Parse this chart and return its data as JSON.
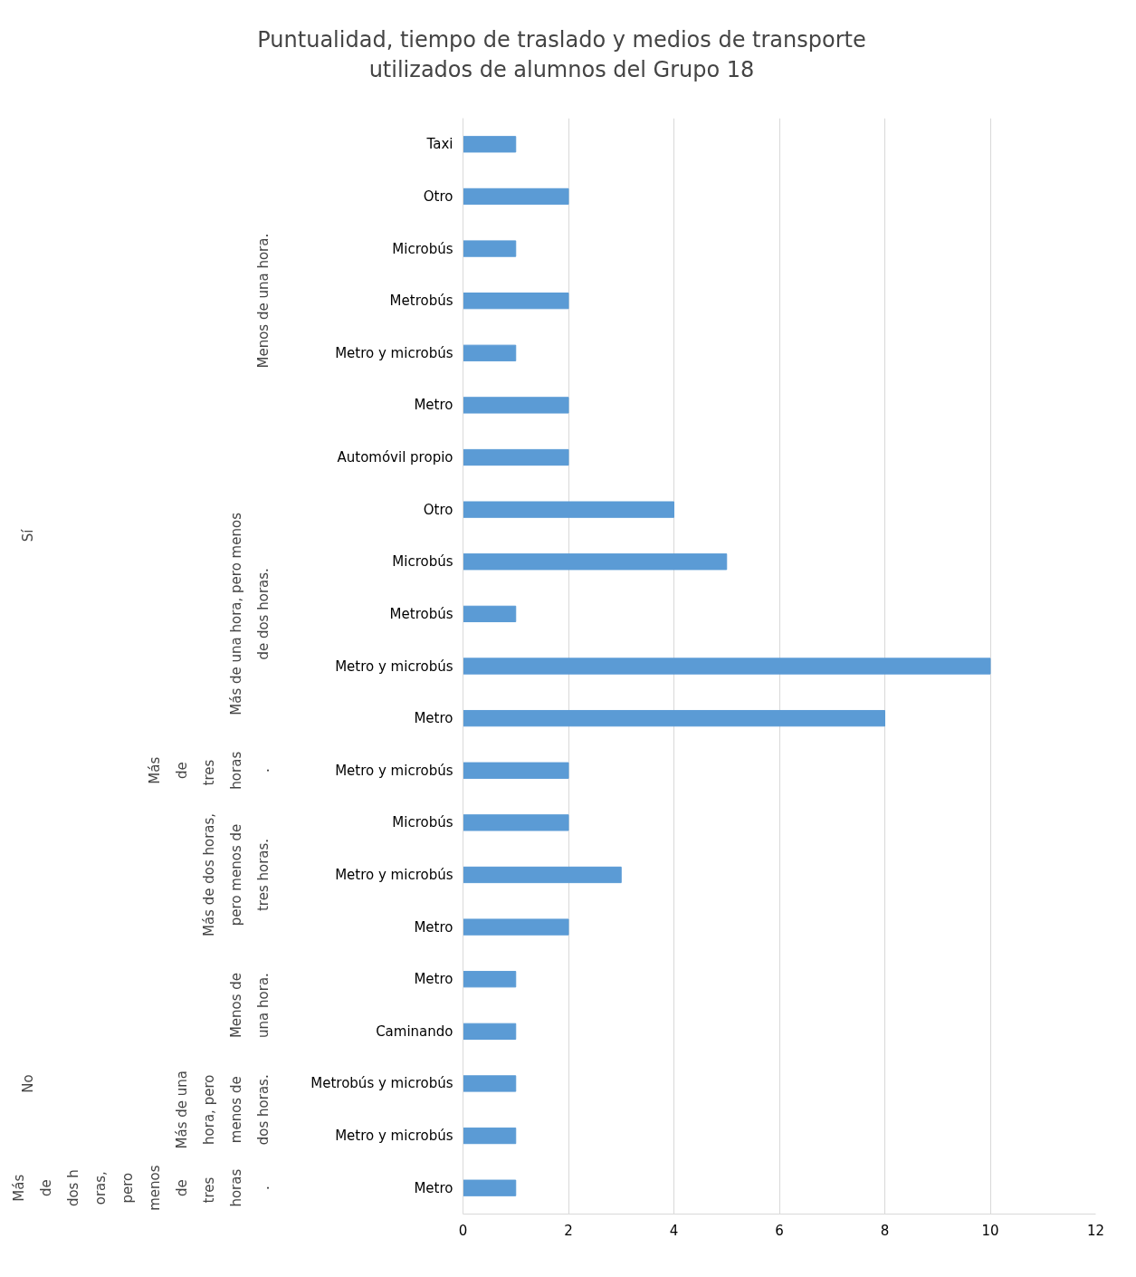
{
  "chart_data": {
    "type": "bar",
    "orientation": "horizontal",
    "title": "Puntualidad, tiempo de traslado y medios de transporte\nutilizados de alumnos del Grupo 18",
    "categories": [
      "Taxi",
      "Otro",
      "Microbús",
      "Metrobús",
      "Metro y microbús",
      "Metro",
      "Automóvil propio",
      "Otro",
      "Microbús",
      "Metrobús",
      "Metro y microbús",
      "Metro",
      "Metro y microbús",
      "Microbús",
      "Metro y microbús",
      "Metro",
      "Metro",
      "Caminando",
      "Metrobús y microbús",
      "Metro y microbús",
      "Metro"
    ],
    "values": [
      1,
      2,
      1,
      2,
      1,
      2,
      2,
      4,
      5,
      1,
      10,
      8,
      2,
      2,
      3,
      2,
      1,
      1,
      1,
      1,
      1
    ],
    "color": "#5b9bd5",
    "xlim": [
      0,
      12
    ],
    "xticks": [
      0,
      2,
      4,
      6,
      8,
      10,
      12
    ],
    "grid": "x",
    "annotations": [
      "Sí",
      "Menos de una hora.",
      "Más de una hora, pero menos de dos horas.",
      "Más de tres horas.",
      "Más de dos horas, pero menos de tres horas.",
      "No",
      "Menos de una hora.",
      "Más de una hora, pero menos de dos horas.",
      "Más de dos horas, pero menos de tres horas."
    ]
  }
}
